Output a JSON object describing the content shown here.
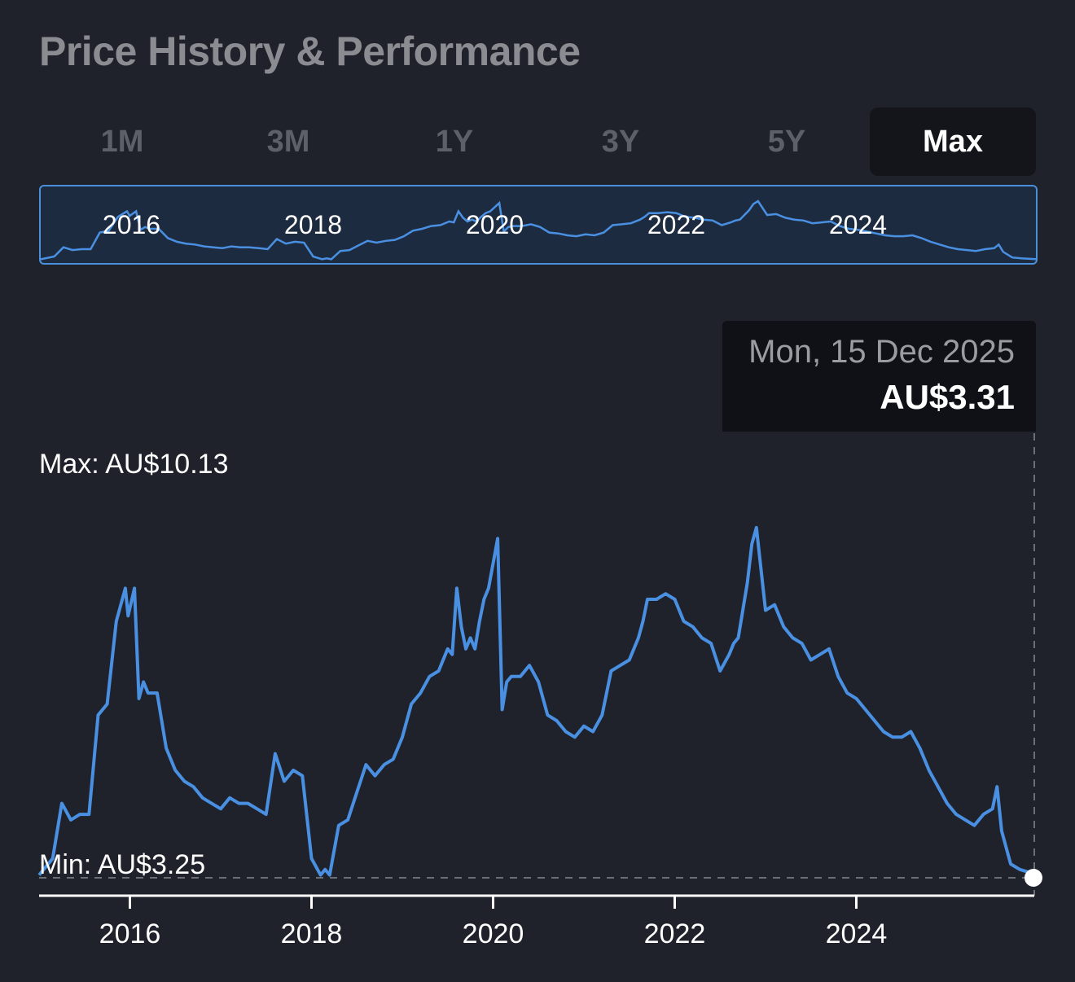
{
  "header": {
    "title": "Price History & Performance"
  },
  "tabs": [
    {
      "label": "1M",
      "active": false
    },
    {
      "label": "3M",
      "active": false
    },
    {
      "label": "1Y",
      "active": false
    },
    {
      "label": "3Y",
      "active": false
    },
    {
      "label": "5Y",
      "active": false
    },
    {
      "label": "Max",
      "active": true
    }
  ],
  "tooltip": {
    "date": "Mon, 15 Dec 2025",
    "price": "AU$3.31"
  },
  "labels": {
    "max": "Max: AU$10.13",
    "min": "Min: AU$3.25"
  },
  "colors": {
    "background": "#1f222b",
    "line": "#4a90e2",
    "overview_fill": "#1d2b40",
    "tooltip_bg": "#0f1116"
  },
  "chart_data": {
    "type": "line",
    "title": "",
    "xlabel": "",
    "ylabel": "",
    "x_ticks": [
      "2016",
      "2018",
      "2020",
      "2022",
      "2024"
    ],
    "xlim": [
      2015.0,
      2025.96
    ],
    "ylim": [
      3.25,
      10.13
    ],
    "grid": false,
    "legend": "none",
    "series": [
      {
        "values_x": [
          2015.0,
          2015.15,
          2015.25,
          2015.35,
          2015.45,
          2015.55,
          2015.65,
          2015.75,
          2015.85,
          2015.95,
          2015.98,
          2016.05,
          2016.1,
          2016.15,
          2016.2,
          2016.3,
          2016.4,
          2016.5,
          2016.6,
          2016.7,
          2016.8,
          2016.9,
          2017.0,
          2017.1,
          2017.2,
          2017.3,
          2017.4,
          2017.5,
          2017.6,
          2017.7,
          2017.8,
          2017.9,
          2018.0,
          2018.1,
          2018.15,
          2018.2,
          2018.3,
          2018.4,
          2018.5,
          2018.6,
          2018.7,
          2018.8,
          2018.9,
          2019.0,
          2019.1,
          2019.2,
          2019.3,
          2019.4,
          2019.5,
          2019.55,
          2019.6,
          2019.65,
          2019.7,
          2019.75,
          2019.8,
          2019.85,
          2019.9,
          2019.95,
          2020.05,
          2020.1,
          2020.15,
          2020.2,
          2020.25,
          2020.3,
          2020.4,
          2020.5,
          2020.6,
          2020.7,
          2020.8,
          2020.9,
          2021.0,
          2021.1,
          2021.2,
          2021.3,
          2021.4,
          2021.5,
          2021.6,
          2021.65,
          2021.7,
          2021.8,
          2021.9,
          2022.0,
          2022.1,
          2022.2,
          2022.3,
          2022.4,
          2022.5,
          2022.6,
          2022.65,
          2022.7,
          2022.8,
          2022.85,
          2022.9,
          2023.0,
          2023.1,
          2023.2,
          2023.3,
          2023.4,
          2023.5,
          2023.6,
          2023.7,
          2023.8,
          2023.9,
          2024.0,
          2024.1,
          2024.2,
          2024.3,
          2024.4,
          2024.5,
          2024.6,
          2024.7,
          2024.8,
          2024.9,
          2025.0,
          2025.1,
          2025.2,
          2025.3,
          2025.4,
          2025.5,
          2025.55,
          2025.6,
          2025.7,
          2025.8,
          2025.9,
          2025.96
        ],
        "values": [
          3.3,
          3.6,
          4.6,
          4.3,
          4.4,
          4.4,
          6.2,
          6.4,
          7.9,
          8.5,
          8.0,
          8.5,
          6.5,
          6.8,
          6.6,
          6.6,
          5.6,
          5.2,
          5.0,
          4.9,
          4.7,
          4.6,
          4.5,
          4.7,
          4.6,
          4.6,
          4.5,
          4.4,
          5.5,
          5.0,
          5.2,
          5.1,
          3.6,
          3.3,
          3.4,
          3.3,
          4.2,
          4.3,
          4.8,
          5.3,
          5.1,
          5.3,
          5.4,
          5.8,
          6.4,
          6.6,
          6.9,
          7.0,
          7.4,
          7.3,
          8.5,
          7.8,
          7.4,
          7.6,
          7.4,
          7.9,
          8.3,
          8.5,
          9.4,
          6.3,
          6.8,
          6.9,
          6.9,
          6.9,
          7.1,
          6.8,
          6.2,
          6.1,
          5.9,
          5.8,
          6.0,
          5.9,
          6.2,
          7.0,
          7.1,
          7.2,
          7.6,
          7.9,
          8.3,
          8.3,
          8.4,
          8.3,
          7.9,
          7.8,
          7.6,
          7.5,
          7.0,
          7.3,
          7.5,
          7.6,
          8.6,
          9.3,
          9.6,
          8.1,
          8.2,
          7.8,
          7.6,
          7.5,
          7.2,
          7.3,
          7.4,
          6.9,
          6.6,
          6.5,
          6.3,
          6.1,
          5.9,
          5.8,
          5.8,
          5.9,
          5.6,
          5.2,
          4.9,
          4.6,
          4.4,
          4.3,
          4.2,
          4.4,
          4.5,
          4.9,
          4.1,
          3.5,
          3.4,
          3.35,
          3.31
        ]
      }
    ]
  }
}
